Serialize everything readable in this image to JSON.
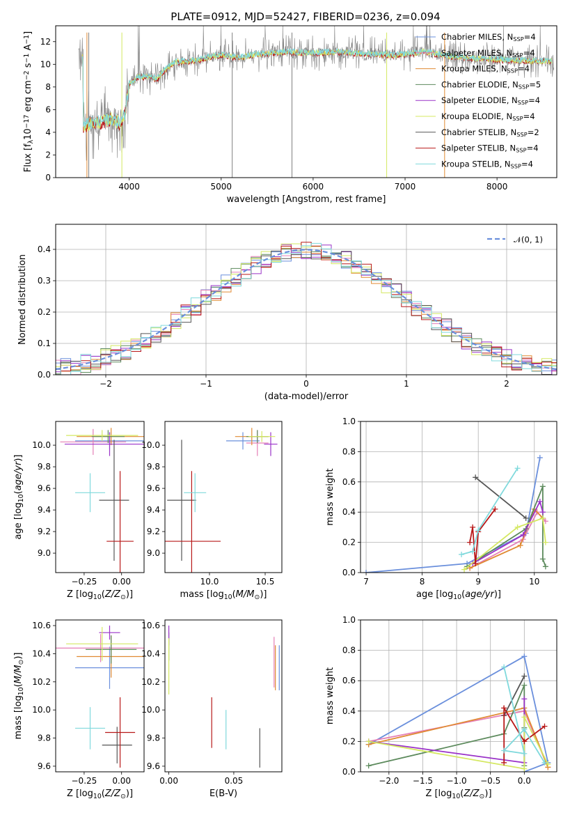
{
  "title": "PLATE=0912, MJD=52427, FIBERID=0236, z=0.094",
  "colors": {
    "Chabrier MILES": "#6a8fdc",
    "Salpeter MILES": "#e57fb6",
    "Kroupa MILES": "#e08a32",
    "Chabrier ELODIE": "#5c8a5c",
    "Salpeter ELODIE": "#9a32c8",
    "Kroupa ELODIE": "#d4e860",
    "Chabrier STELIB": "#555555",
    "Salpeter STELIB": "#b81818",
    "Kroupa STELIB": "#7fd9dc",
    "normal_curve": "#6a8fdc"
  },
  "chart_data": [
    {
      "type": "line",
      "panel": "spectrum",
      "xlabel": "wavelength [Angstrom, rest frame]",
      "ylabel": "Flux [f_λ 10^-17 erg cm^-2 s^-1 A^-1]",
      "xlim": [
        3200,
        8650
      ],
      "ylim": [
        0,
        13.4
      ],
      "xticks": [
        4000,
        5000,
        6000,
        7000,
        8000
      ],
      "yticks": [
        0,
        2,
        4,
        6,
        8,
        10,
        12
      ],
      "legend_position": "right",
      "legend": [
        {
          "label": "Chabrier MILES",
          "sub": "SSP",
          "n": "=4"
        },
        {
          "label": "Salpeter MILES",
          "sub": "SSP",
          "n": "=4"
        },
        {
          "label": "Kroupa MILES",
          "sub": "SSP",
          "n": "=4"
        },
        {
          "label": "Chabrier ELODIE",
          "sub": "SSP",
          "n": "=5"
        },
        {
          "label": "Salpeter ELODIE",
          "sub": "SSP",
          "n": "=4"
        },
        {
          "label": "Kroupa ELODIE",
          "sub": "SSP",
          "n": "=4"
        },
        {
          "label": "Chabrier STELIB",
          "sub": "SSP",
          "n": "=2"
        },
        {
          "label": "Salpeter STELIB",
          "sub": "SSP",
          "n": "=4"
        },
        {
          "label": "Kroupa STELIB",
          "sub": "SSP",
          "n": "=4"
        }
      ],
      "continuum": [
        [
          3500,
          4.6
        ],
        [
          3600,
          4.8
        ],
        [
          3700,
          4.9
        ],
        [
          3800,
          5.2
        ],
        [
          3900,
          4.8
        ],
        [
          3950,
          5.5
        ],
        [
          4000,
          8.3
        ],
        [
          4100,
          8.9
        ],
        [
          4200,
          8.9
        ],
        [
          4300,
          8.7
        ],
        [
          4400,
          9.6
        ],
        [
          4500,
          10.2
        ],
        [
          4700,
          10.3
        ],
        [
          4900,
          10.7
        ],
        [
          5000,
          10.8
        ],
        [
          5200,
          10.6
        ],
        [
          5400,
          10.9
        ],
        [
          5700,
          11.1
        ],
        [
          6000,
          11.0
        ],
        [
          6300,
          11.1
        ],
        [
          6600,
          10.9
        ],
        [
          6900,
          10.8
        ],
        [
          7200,
          11.1
        ],
        [
          7500,
          10.7
        ],
        [
          7800,
          10.5
        ],
        [
          8100,
          10.4
        ],
        [
          8350,
          10.3
        ]
      ],
      "data_range": [
        3450,
        8620
      ],
      "data_ymax": 13.4
    },
    {
      "type": "bar",
      "panel": "residual histogram",
      "xlabel": "(data-model)/error",
      "ylabel": "Normed distribution",
      "xlim": [
        -2.5,
        2.5
      ],
      "ylim": [
        0,
        0.48
      ],
      "xticks": [
        -2,
        -1,
        0,
        1,
        2
      ],
      "yticks": [
        0.0,
        0.1,
        0.2,
        0.3,
        0.4
      ],
      "grid": true,
      "bin_width": 0.1,
      "curve_label": "N(0,1)",
      "legend_position": "top-right"
    },
    {
      "type": "scatter",
      "panel": "Z vs age",
      "xlabel": "Z [log10(Z/Z⊙)]",
      "ylabel": "age [log10(age/yr)]",
      "xlim": [
        -0.44,
        0.15
      ],
      "ylim": [
        8.82,
        10.22
      ],
      "xticks": [
        -0.25,
        0.0
      ],
      "yticks": [
        9.0,
        9.2,
        9.4,
        9.6,
        9.8,
        10.0
      ],
      "points": [
        {
          "model": "Chabrier MILES",
          "x": -0.08,
          "xerr": 0.23,
          "y": 10.04,
          "yerr": 0.08
        },
        {
          "model": "Salpeter MILES",
          "x": -0.19,
          "xerr": 0.22,
          "y": 10.03,
          "yerr": 0.12
        },
        {
          "model": "Kroupa MILES",
          "x": -0.07,
          "xerr": 0.23,
          "y": 10.08,
          "yerr": 0.08
        },
        {
          "model": "Chabrier ELODIE",
          "x": -0.09,
          "xerr": 0.11,
          "y": 10.08,
          "yerr": 0.06
        },
        {
          "model": "Salpeter ELODIE",
          "x": -0.08,
          "xerr": 0.3,
          "y": 10.01,
          "yerr": 0.11
        },
        {
          "model": "Kroupa ELODIE",
          "x": -0.13,
          "xerr": 0.24,
          "y": 10.09,
          "yerr": 0.05
        },
        {
          "model": "Chabrier STELIB",
          "x": -0.05,
          "xerr": 0.1,
          "y": 9.49,
          "yerr": 0.56
        },
        {
          "model": "Salpeter STELIB",
          "x": -0.01,
          "xerr": 0.09,
          "y": 9.11,
          "yerr": 0.65
        },
        {
          "model": "Kroupa STELIB",
          "x": -0.21,
          "xerr": 0.1,
          "y": 9.56,
          "yerr": 0.18
        }
      ]
    },
    {
      "type": "scatter",
      "panel": "mass vs age",
      "xlabel": "mass [log10(M/M⊙)]",
      "ylabel": "",
      "xlim": [
        9.6,
        10.65
      ],
      "ylim": [
        8.82,
        10.22
      ],
      "xticks": [
        10.0,
        10.5
      ],
      "yticks": [
        9.0,
        9.2,
        9.4,
        9.6,
        9.8,
        10.0
      ],
      "points": [
        {
          "model": "Chabrier MILES",
          "x": 10.3,
          "xerr": 0.15,
          "y": 10.04,
          "yerr": 0.08
        },
        {
          "model": "Salpeter MILES",
          "x": 10.43,
          "xerr": 0.1,
          "y": 10.02,
          "yerr": 0.12
        },
        {
          "model": "Kroupa MILES",
          "x": 10.38,
          "xerr": 0.15,
          "y": 10.08,
          "yerr": 0.08
        },
        {
          "model": "Chabrier ELODIE",
          "x": 10.43,
          "xerr": 0.1,
          "y": 10.08,
          "yerr": 0.06
        },
        {
          "model": "Salpeter ELODIE",
          "x": 10.55,
          "xerr": 0.06,
          "y": 10.01,
          "yerr": 0.11
        },
        {
          "model": "Kroupa ELODIE",
          "x": 10.47,
          "xerr": 0.12,
          "y": 10.08,
          "yerr": 0.05
        },
        {
          "model": "Chabrier STELIB",
          "x": 9.75,
          "xerr": 0.13,
          "y": 9.49,
          "yerr": 0.56
        },
        {
          "model": "Salpeter STELIB",
          "x": 9.84,
          "xerr": 0.26,
          "y": 9.11,
          "yerr": 0.65
        },
        {
          "model": "Kroupa STELIB",
          "x": 9.87,
          "xerr": 0.1,
          "y": 9.56,
          "yerr": 0.18
        }
      ]
    },
    {
      "type": "line",
      "panel": "age vs mass weight",
      "xlabel": "age [log10(age/yr)]",
      "ylabel": "mass weight",
      "xlim": [
        6.9,
        10.4
      ],
      "ylim": [
        0,
        1.0
      ],
      "xticks": [
        7,
        8,
        9,
        10
      ],
      "yticks": [
        0.0,
        0.2,
        0.4,
        0.6,
        0.8,
        1.0
      ],
      "grid": true,
      "series": [
        {
          "model": "Chabrier MILES",
          "x": [
            7.0,
            8.8,
            9.85,
            10.1
          ],
          "y": [
            0.0,
            0.06,
            0.26,
            0.76
          ]
        },
        {
          "model": "Salpeter MILES",
          "x": [
            8.85,
            9.8,
            10.05,
            10.2
          ],
          "y": [
            0.03,
            0.22,
            0.4,
            0.34
          ]
        },
        {
          "model": "Kroupa MILES",
          "x": [
            8.85,
            9.75,
            10.0,
            10.15
          ],
          "y": [
            0.03,
            0.18,
            0.42,
            0.36
          ]
        },
        {
          "model": "Chabrier ELODIE",
          "x": [
            8.8,
            9.85,
            10.15,
            10.15,
            10.2
          ],
          "y": [
            0.04,
            0.29,
            0.57,
            0.09,
            0.04
          ]
        },
        {
          "model": "Salpeter ELODIE",
          "x": [
            8.9,
            9.8,
            10.1,
            10.15
          ],
          "y": [
            0.06,
            0.25,
            0.47,
            0.4
          ]
        },
        {
          "model": "Kroupa ELODIE",
          "x": [
            8.75,
            9.7,
            10.15,
            10.2
          ],
          "y": [
            0.02,
            0.3,
            0.36,
            0.2
          ]
        },
        {
          "model": "Chabrier STELIB",
          "x": [
            8.95,
            9.85
          ],
          "y": [
            0.63,
            0.36
          ]
        },
        {
          "model": "Salpeter STELIB",
          "x": [
            8.85,
            8.9,
            8.95,
            9.0,
            9.3
          ],
          "y": [
            0.2,
            0.3,
            0.06,
            0.27,
            0.42
          ]
        },
        {
          "model": "Kroupa STELIB",
          "x": [
            8.7,
            8.9,
            9.0,
            9.7
          ],
          "y": [
            0.12,
            0.14,
            0.28,
            0.69
          ]
        }
      ]
    },
    {
      "type": "scatter",
      "panel": "Z vs mass",
      "xlabel": "Z [log10(Z/Z⊙)]",
      "ylabel": "mass [log10(M/M⊙)]",
      "xlim": [
        -0.44,
        0.15
      ],
      "ylim": [
        9.56,
        10.64
      ],
      "xticks": [
        -0.25,
        0.0
      ],
      "yticks": [
        9.6,
        9.8,
        10.0,
        10.2,
        10.4,
        10.6
      ],
      "points": [
        {
          "model": "Chabrier MILES",
          "x": -0.08,
          "xerr": 0.23,
          "y": 10.3,
          "yerr": 0.15
        },
        {
          "model": "Salpeter MILES",
          "x": -0.14,
          "xerr": 0.3,
          "y": 10.44,
          "yerr": 0.1
        },
        {
          "model": "Kroupa MILES",
          "x": -0.07,
          "xerr": 0.23,
          "y": 10.38,
          "yerr": 0.15
        },
        {
          "model": "Chabrier ELODIE",
          "x": -0.07,
          "xerr": 0.17,
          "y": 10.43,
          "yerr": 0.1
        },
        {
          "model": "Salpeter ELODIE",
          "x": -0.08,
          "xerr": 0.07,
          "y": 10.55,
          "yerr": 0.05
        },
        {
          "model": "Kroupa ELODIE",
          "x": -0.13,
          "xerr": 0.24,
          "y": 10.47,
          "yerr": 0.12
        },
        {
          "model": "Chabrier STELIB",
          "x": -0.03,
          "xerr": 0.1,
          "y": 9.75,
          "yerr": 0.13
        },
        {
          "model": "Salpeter STELIB",
          "x": -0.01,
          "xerr": 0.1,
          "y": 9.84,
          "yerr": 0.25
        },
        {
          "model": "Kroupa STELIB",
          "x": -0.21,
          "xerr": 0.1,
          "y": 9.87,
          "yerr": 0.15
        }
      ]
    },
    {
      "type": "scatter",
      "panel": "E(B-V) vs mass",
      "xlabel": "E(B-V)",
      "ylabel": "",
      "xlim": [
        -0.003,
        0.087
      ],
      "ylim": [
        9.56,
        10.64
      ],
      "xticks": [
        0.0,
        0.05
      ],
      "yticks": [
        9.6,
        9.8,
        10.0,
        10.2,
        10.4,
        10.6
      ],
      "points": [
        {
          "model": "Chabrier MILES",
          "x": 0.085,
          "y": 10.3,
          "yerr": 0.16
        },
        {
          "model": "Salpeter MILES",
          "x": 0.081,
          "y": 10.34,
          "yerr": 0.18
        },
        {
          "model": "Kroupa MILES",
          "x": 0.082,
          "y": 10.3,
          "yerr": 0.16
        },
        {
          "model": "Chabrier ELODIE",
          "x": 0.0,
          "y": 10.45,
          "yerr": 0.1
        },
        {
          "model": "Salpeter ELODIE",
          "x": 0.0,
          "y": 10.53,
          "yerr": 0.07
        },
        {
          "model": "Kroupa ELODIE",
          "x": 0.0,
          "y": 10.31,
          "yerr": 0.2
        },
        {
          "model": "Chabrier STELIB",
          "x": 0.07,
          "y": 9.73,
          "yerr": 0.14
        },
        {
          "model": "Salpeter STELIB",
          "x": 0.033,
          "y": 9.91,
          "yerr": 0.18
        },
        {
          "model": "Kroupa STELIB",
          "x": 0.044,
          "y": 9.86,
          "yerr": 0.14
        }
      ]
    },
    {
      "type": "line",
      "panel": "Z vs mass weight",
      "xlabel": "Z [log10(Z/Z⊙)]",
      "ylabel": "mass weight",
      "xlim": [
        -2.42,
        0.48
      ],
      "ylim": [
        0,
        1.0
      ],
      "xticks": [
        -2.0,
        -1.5,
        -1.0,
        -0.5,
        0.0
      ],
      "yticks": [
        0.0,
        0.2,
        0.4,
        0.6,
        0.8,
        1.0
      ],
      "grid": true,
      "series": [
        {
          "model": "Chabrier MILES",
          "x": [
            -2.3,
            0.0,
            0.35,
            0.0
          ],
          "y": [
            0.18,
            0.76,
            0.06,
            0.0
          ]
        },
        {
          "model": "Salpeter MILES",
          "x": [
            -2.3,
            0.0,
            0.35
          ],
          "y": [
            0.2,
            0.4,
            0.03
          ]
        },
        {
          "model": "Kroupa MILES",
          "x": [
            -2.3,
            0.0,
            0.35
          ],
          "y": [
            0.18,
            0.42,
            0.03
          ]
        },
        {
          "model": "Chabrier ELODIE",
          "x": [
            -2.3,
            -0.3,
            0.0,
            0.0,
            0.0
          ],
          "y": [
            0.04,
            0.25,
            0.57,
            0.29,
            0.04
          ]
        },
        {
          "model": "Salpeter ELODIE",
          "x": [
            -2.3,
            0.0,
            0.0
          ],
          "y": [
            0.2,
            0.06,
            0.48
          ]
        },
        {
          "model": "Kroupa ELODIE",
          "x": [
            -2.3,
            0.0,
            0.0,
            0.35
          ],
          "y": [
            0.2,
            0.02,
            0.36,
            0.05
          ]
        },
        {
          "model": "Chabrier STELIB",
          "x": [
            -0.3,
            0.0
          ],
          "y": [
            0.37,
            0.63
          ]
        },
        {
          "model": "Salpeter STELIB",
          "x": [
            -0.3,
            -0.3,
            0.0,
            0.3
          ],
          "y": [
            0.06,
            0.42,
            0.2,
            0.3
          ]
        },
        {
          "model": "Kroupa STELIB",
          "x": [
            -0.3,
            0.0,
            -0.3,
            0.0,
            0.3
          ],
          "y": [
            0.69,
            0.12,
            0.14,
            0.28,
            0.06
          ]
        }
      ]
    }
  ]
}
